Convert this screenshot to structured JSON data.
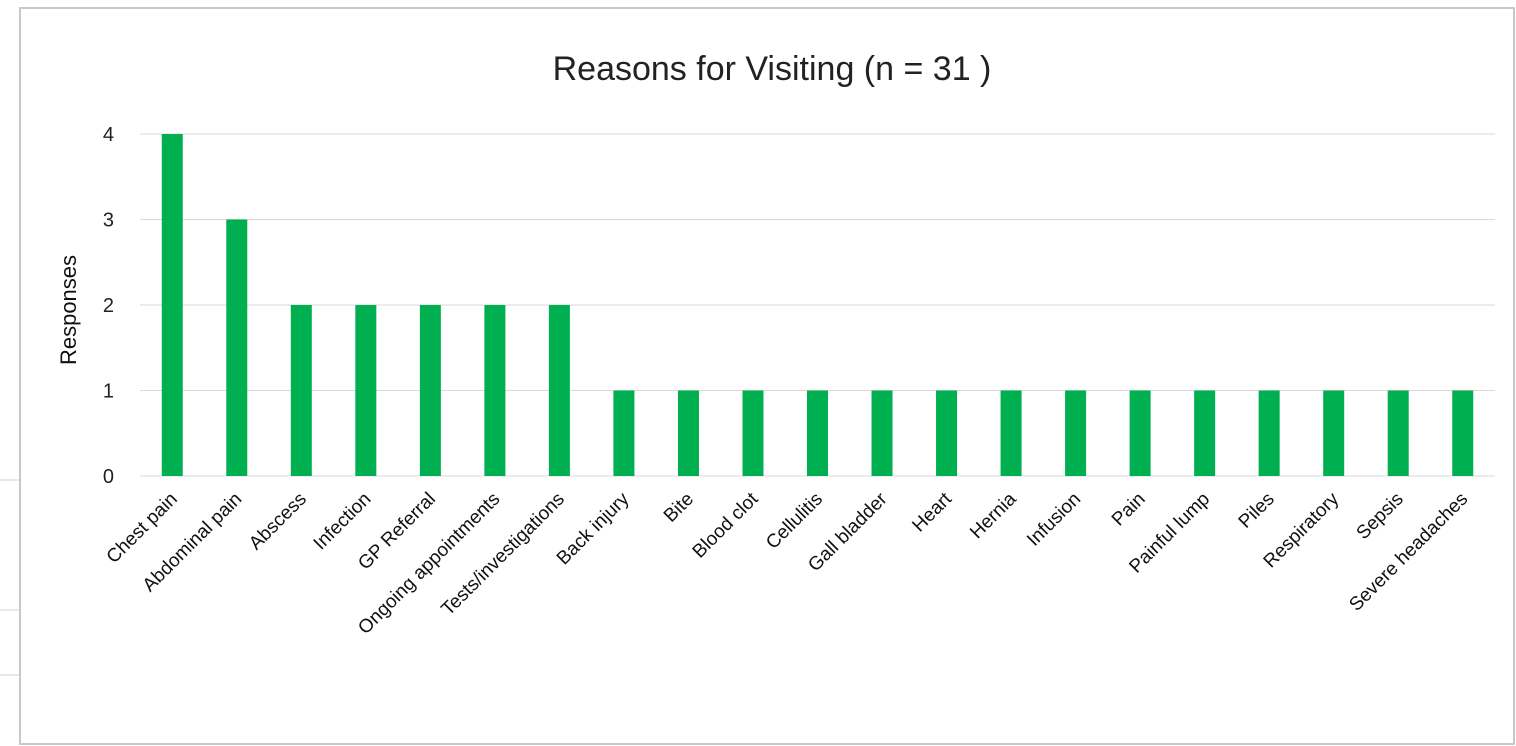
{
  "chart_data": {
    "type": "bar",
    "title": "Reasons for Visiting (n = 31 )",
    "xlabel": "",
    "ylabel": "Responses",
    "ylim": [
      0,
      4
    ],
    "yticks": [
      "0",
      "1",
      "2",
      "3",
      "4"
    ],
    "grid": true,
    "legend": "none",
    "bar_color": "#00b050",
    "categories": [
      "Chest pain",
      "Abdominal pain",
      "Abscess",
      "Infection",
      "GP Referral",
      "Ongoing appointments",
      "Tests/investigations",
      "Back injury",
      "Bite",
      "Blood clot",
      "Cellulitis",
      "Gall bladder",
      "Heart",
      "Hernia",
      "Infusion",
      "Pain",
      "Painful lump",
      "Piles",
      "Respiratory",
      "Sepsis",
      "Severe headaches"
    ],
    "values": [
      4,
      3,
      2,
      2,
      2,
      2,
      2,
      1,
      1,
      1,
      1,
      1,
      1,
      1,
      1,
      1,
      1,
      1,
      1,
      1,
      1
    ]
  }
}
